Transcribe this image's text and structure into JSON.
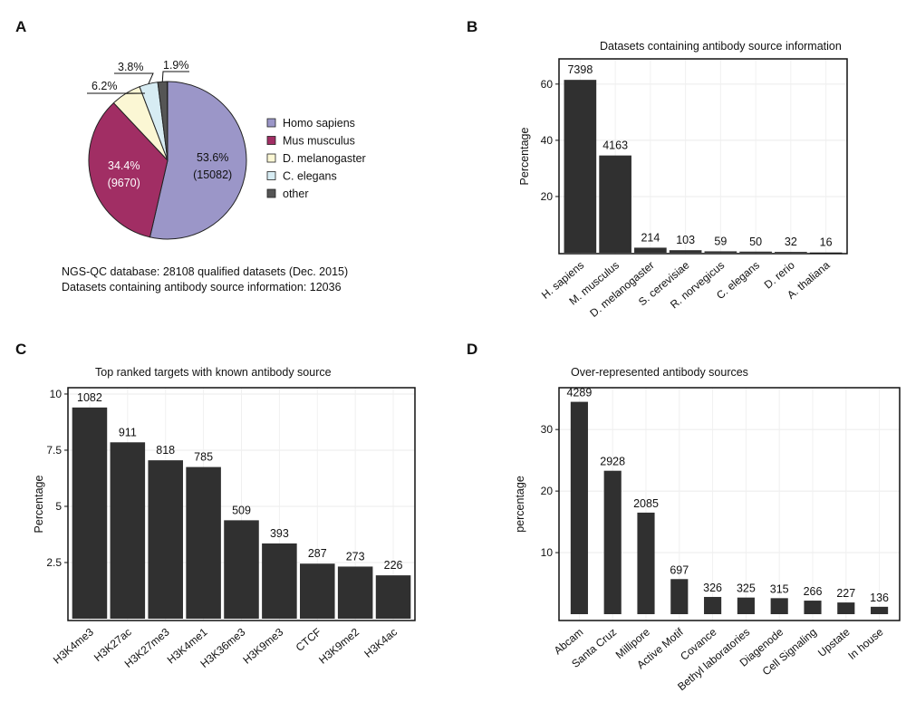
{
  "panels": {
    "a": "A",
    "b": "B",
    "c": "C",
    "d": "D"
  },
  "notes": {
    "line1": "NGS-QC database: 28108 qualified datasets (Dec. 2015)",
    "line2": "Datasets containing antibody source information: 12036"
  },
  "chart_data": [
    {
      "type": "pie",
      "panel": "A",
      "title": "",
      "legend_position": "right",
      "slices": [
        {
          "name": "Homo sapiens",
          "percent": 53.6,
          "count": "15082",
          "color": "#9b96c8"
        },
        {
          "name": "Mus musculus",
          "percent": 34.4,
          "count": "9670",
          "color": "#a12e64"
        },
        {
          "name": "D. melanogaster",
          "percent": 6.2,
          "color": "#fbf7d4"
        },
        {
          "name": "C. elegans",
          "percent": 3.8,
          "color": "#d7ecf3"
        },
        {
          "name": "other",
          "percent": 1.9,
          "color": "#555555"
        }
      ],
      "labels": {
        "hs_pct": "53.6%",
        "hs_count": "(15082)",
        "mm_pct": "34.4%",
        "mm_count": "(9670)",
        "dm_pct": "6.2%",
        "ce_pct": "3.8%",
        "ot_pct": "1.9%"
      }
    },
    {
      "type": "bar",
      "panel": "B",
      "title": "Datasets containing antibody source information",
      "xlabel": "",
      "ylabel": "Percentage",
      "ylim": [
        0,
        68
      ],
      "yticks": [
        20,
        40,
        60
      ],
      "grid": true,
      "categories": [
        "H. sapiens",
        "M. musculus",
        "D. melanogaster",
        "S. cerevisiae",
        "R. norvegicus",
        "C. elegans",
        "D. rerio",
        "A. thaliana"
      ],
      "values": [
        61.5,
        34.6,
        1.8,
        0.9,
        0.5,
        0.4,
        0.3,
        0.1
      ],
      "bar_labels": [
        "7398",
        "4163",
        "214",
        "103",
        "59",
        "50",
        "32",
        "16"
      ]
    },
    {
      "type": "bar",
      "panel": "C",
      "title": "Top ranked targets with known antibody source",
      "xlabel": "",
      "ylabel": "Percentage",
      "ylim": [
        0,
        10.2
      ],
      "yticks": [
        2.5,
        5,
        7.5,
        10
      ],
      "ytick_labels": [
        "2.5",
        "5",
        "7.5",
        "10"
      ],
      "grid": true,
      "categories": [
        "H3K4me3",
        "H3K27ac",
        "H3K27me3",
        "H3K4me1",
        "H3K36me3",
        "H3K9me3",
        "CTCF",
        "H3K9me2",
        "H3K4ac"
      ],
      "values": [
        9.4,
        7.85,
        7.05,
        6.75,
        4.38,
        3.35,
        2.45,
        2.32,
        1.93
      ],
      "bar_labels": [
        "1082",
        "911",
        "818",
        "785",
        "509",
        "393",
        "287",
        "273",
        "226"
      ]
    },
    {
      "type": "bar",
      "panel": "D",
      "title": "Over-represented antibody sources",
      "xlabel": "",
      "ylabel": "percentage",
      "ylim": [
        0,
        36.5
      ],
      "yticks": [
        10,
        20,
        30
      ],
      "grid": true,
      "categories": [
        "Abcam",
        "Santa Cruz",
        "Millipore",
        "Active Motif",
        "Covance",
        "Bethyl laboratories",
        "Diagenode",
        "Cell Signaling",
        "Upstate",
        "In house"
      ],
      "values": [
        34.5,
        23.3,
        16.5,
        5.7,
        2.8,
        2.7,
        2.6,
        2.2,
        1.9,
        1.2
      ],
      "bar_labels": [
        "4289",
        "2928",
        "2085",
        "697",
        "326",
        "325",
        "315",
        "266",
        "227",
        "136"
      ]
    }
  ]
}
